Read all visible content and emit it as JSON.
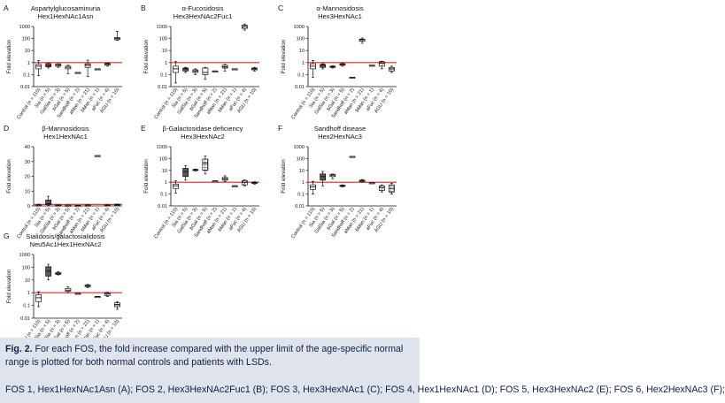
{
  "figure": {
    "caption_label": "Fig. 2.",
    "caption_text": " For each FOS, the fold increase compared with the upper limit of the age-specific normal range is plotted for both normal controls and patients with LSDs.",
    "caption_sub": "FOS 1, Hex1HexNAc1Asn (A); FOS 2, Hex3HexNAc2Fuc1 (B); FOS 3, Hex3HexNAc1 (C); FOS 4, Hex1HexNAc1 (D); FOS 5, Hex3HexNAc2 (E); FOS 6, Hex2HexNAc3 (F);",
    "reference_color": "#e02020"
  },
  "chart_data": [
    {
      "type": "box",
      "letter": "A",
      "title_lines": [
        "Aspartylglucosaminuria",
        "Hex1HexNAc1Asn"
      ],
      "ylabel": "Fold elevation",
      "yscale": "log",
      "ylim": [
        0.01,
        1000
      ],
      "yticks": [
        "0.01",
        "0.1",
        "1",
        "10",
        "100",
        "1000"
      ],
      "reference_line": 1,
      "categories": [
        "Control (n = 110)",
        "Sia (n = 5)",
        "GalSia (n = 3)",
        "bGal (n = 5)",
        "Sandhoff (n = 2)",
        "aMan (n = 21)",
        "bMan (n = 1)",
        "aFuc (n = 4)",
        "AGU (n = 10)"
      ],
      "series": [
        {
          "group": "Control (n = 110)",
          "min": 0.08,
          "q1": 0.3,
          "median": 0.5,
          "q3": 0.7,
          "max": 1.5,
          "fill": "plain"
        },
        {
          "group": "Sia (n = 5)",
          "min": 0.35,
          "q1": 0.45,
          "median": 0.55,
          "q3": 0.8,
          "max": 0.85,
          "fill": "dark"
        },
        {
          "group": "GalSia (n = 3)",
          "min": 0.4,
          "q1": 0.5,
          "median": 0.6,
          "q3": 0.75,
          "max": 0.8,
          "fill": "hatch"
        },
        {
          "group": "bGal (n = 5)",
          "min": 0.12,
          "q1": 0.3,
          "median": 0.4,
          "q3": 0.5,
          "max": 0.6,
          "fill": "plain"
        },
        {
          "group": "Sandhoff (n = 2)",
          "min": 0.15,
          "q1": 0.15,
          "median": 0.15,
          "q3": 0.15,
          "max": 0.15,
          "fill": "plain"
        },
        {
          "group": "aMan (n = 21)",
          "min": 0.07,
          "q1": 0.4,
          "median": 0.6,
          "q3": 0.8,
          "max": 1.6,
          "fill": "dots"
        },
        {
          "group": "bMan (n = 1)",
          "min": 0.3,
          "q1": 0.3,
          "median": 0.3,
          "q3": 0.3,
          "max": 0.3,
          "fill": "plain"
        },
        {
          "group": "aFuc (n = 4)",
          "min": 0.5,
          "q1": 0.6,
          "median": 0.75,
          "q3": 0.85,
          "max": 0.9,
          "fill": "hatch"
        },
        {
          "group": "AGU (n = 10)",
          "min": 70,
          "q1": 80,
          "median": 100,
          "q3": 120,
          "max": 400,
          "fill": "grid"
        }
      ]
    },
    {
      "type": "box",
      "letter": "B",
      "title_lines": [
        "α-Fucosidosis",
        "Hex3HexNAc2Fuc1"
      ],
      "ylabel": "Fold elevation",
      "yscale": "log",
      "ylim": [
        0.01,
        1000
      ],
      "yticks": [
        "0.01",
        "0.1",
        "1",
        "10",
        "100",
        "1000"
      ],
      "reference_line": 1,
      "categories": [
        "Control (n = 110)",
        "Sia (n = 5)",
        "GalSia (n = 3)",
        "bGal (n = 5)",
        "Sandhoff (n = 2)",
        "aMan (n = 21)",
        "bMan (n = 1)",
        "aFuc (n = 4)",
        "AGU (n = 10)"
      ],
      "series": [
        {
          "group": "Control (n = 110)",
          "min": 0.02,
          "q1": 0.15,
          "median": 0.3,
          "q3": 0.5,
          "max": 1.2,
          "fill": "plain"
        },
        {
          "group": "Sia (n = 5)",
          "min": 0.15,
          "q1": 0.2,
          "median": 0.3,
          "q3": 0.35,
          "max": 0.4,
          "fill": "dark"
        },
        {
          "group": "GalSia (n = 3)",
          "min": 0.1,
          "q1": 0.15,
          "median": 0.2,
          "q3": 0.25,
          "max": 0.3,
          "fill": "hatch"
        },
        {
          "group": "bGal (n = 5)",
          "min": 0.04,
          "q1": 0.1,
          "median": 0.15,
          "q3": 0.35,
          "max": 0.4,
          "fill": "plain"
        },
        {
          "group": "Sandhoff (n = 2)",
          "min": 0.2,
          "q1": 0.2,
          "median": 0.2,
          "q3": 0.2,
          "max": 0.2,
          "fill": "plain"
        },
        {
          "group": "aMan (n = 21)",
          "min": 0.2,
          "q1": 0.35,
          "median": 0.45,
          "q3": 0.6,
          "max": 0.7,
          "fill": "dots"
        },
        {
          "group": "bMan (n = 1)",
          "min": 0.3,
          "q1": 0.3,
          "median": 0.3,
          "q3": 0.3,
          "max": 0.3,
          "fill": "plain"
        },
        {
          "group": "aFuc (n = 4)",
          "min": 500,
          "q1": 700,
          "median": 1000,
          "q3": 1300,
          "max": 1600,
          "fill": "hatch"
        },
        {
          "group": "AGU (n = 10)",
          "min": 0.2,
          "q1": 0.25,
          "median": 0.3,
          "q3": 0.35,
          "max": 0.4,
          "fill": "grid"
        }
      ]
    },
    {
      "type": "box",
      "letter": "C",
      "title_lines": [
        "α-Mannosidosis",
        "Hex3HexNAc1"
      ],
      "ylabel": "Fold elevation",
      "yscale": "log",
      "ylim": [
        0.01,
        1000
      ],
      "yticks": [
        "0.01",
        "0.1",
        "1",
        "10",
        "100",
        "1000"
      ],
      "reference_line": 1,
      "categories": [
        "Control (n = 110)",
        "Sia (n = 5)",
        "GalSia (n = 3)",
        "bGal (n = 5)",
        "Sandhoff (n = 2)",
        "aMan (n = 21)",
        "bMan (n = 1)",
        "aFuc (n = 4)",
        "AGU (n = 10)"
      ],
      "series": [
        {
          "group": "Control (n = 110)",
          "min": 0.06,
          "q1": 0.3,
          "median": 0.5,
          "q3": 0.8,
          "max": 1.5,
          "fill": "plain"
        },
        {
          "group": "Sia (n = 5)",
          "min": 0.3,
          "q1": 0.4,
          "median": 0.6,
          "q3": 0.7,
          "max": 0.8,
          "fill": "dark"
        },
        {
          "group": "GalSia (n = 3)",
          "min": 0.35,
          "q1": 0.4,
          "median": 0.45,
          "q3": 0.5,
          "max": 0.55,
          "fill": "hatch"
        },
        {
          "group": "bGal (n = 5)",
          "min": 0.5,
          "q1": 0.6,
          "median": 0.7,
          "q3": 0.8,
          "max": 0.85,
          "fill": "plain"
        },
        {
          "group": "Sandhoff (n = 2)",
          "min": 0.06,
          "q1": 0.06,
          "median": 0.06,
          "q3": 0.06,
          "max": 0.06,
          "fill": "plain"
        },
        {
          "group": "aMan (n = 21)",
          "min": 40,
          "q1": 60,
          "median": 80,
          "q3": 90,
          "max": 110,
          "fill": "dots"
        },
        {
          "group": "bMan (n = 1)",
          "min": 0.6,
          "q1": 0.6,
          "median": 0.6,
          "q3": 0.6,
          "max": 0.6,
          "fill": "plain"
        },
        {
          "group": "aFuc (n = 4)",
          "min": 0.3,
          "q1": 0.5,
          "median": 0.9,
          "q3": 1.2,
          "max": 1.3,
          "fill": "hatch"
        },
        {
          "group": "AGU (n = 10)",
          "min": 0.15,
          "q1": 0.2,
          "median": 0.3,
          "q3": 0.4,
          "max": 0.5,
          "fill": "grid"
        }
      ]
    },
    {
      "type": "box",
      "letter": "D",
      "title_lines": [
        "β-Mannosidosis",
        "Hex1HexNAc1"
      ],
      "ylabel": "Fold elevation",
      "yscale": "linear",
      "ylim": [
        0,
        40
      ],
      "yticks": [
        "0",
        "10",
        "20",
        "30",
        "40"
      ],
      "reference_line": 1,
      "categories": [
        "Control (n = 110)",
        "Sia (n = 5)",
        "GalSia (n = 3)",
        "bGal (n = 5)",
        "Sandhoff (n = 2)",
        "aMan (n = 21)",
        "bMan (n = 1)",
        "aFuc (n = 4)",
        "AGU (n = 10)"
      ],
      "series": [
        {
          "group": "Control (n = 110)",
          "min": 0.1,
          "q1": 0.3,
          "median": 0.5,
          "q3": 0.7,
          "max": 1.2,
          "fill": "plain"
        },
        {
          "group": "Sia (n = 5)",
          "min": 0.3,
          "q1": 0.8,
          "median": 1.5,
          "q3": 4,
          "max": 6.5,
          "fill": "dark"
        },
        {
          "group": "GalSia (n = 3)",
          "min": 0.3,
          "q1": 0.4,
          "median": 0.5,
          "q3": 0.6,
          "max": 0.7,
          "fill": "hatch"
        },
        {
          "group": "bGal (n = 5)",
          "min": 0.2,
          "q1": 0.3,
          "median": 0.4,
          "q3": 0.5,
          "max": 0.6,
          "fill": "plain"
        },
        {
          "group": "Sandhoff (n = 2)",
          "min": 0.3,
          "q1": 0.3,
          "median": 0.3,
          "q3": 0.3,
          "max": 0.3,
          "fill": "plain"
        },
        {
          "group": "aMan (n = 21)",
          "min": 0.2,
          "q1": 0.3,
          "median": 0.5,
          "q3": 0.6,
          "max": 0.8,
          "fill": "dots"
        },
        {
          "group": "bMan (n = 1)",
          "min": 34,
          "q1": 34,
          "median": 34,
          "q3": 34,
          "max": 34,
          "fill": "plain"
        },
        {
          "group": "aFuc (n = 4)",
          "min": 0.4,
          "q1": 0.5,
          "median": 0.6,
          "q3": 0.7,
          "max": 0.8,
          "fill": "hatch"
        },
        {
          "group": "AGU (n = 10)",
          "min": 0.5,
          "q1": 0.7,
          "median": 0.9,
          "q3": 1.1,
          "max": 1.3,
          "fill": "grid"
        }
      ]
    },
    {
      "type": "box",
      "letter": "E",
      "title_lines": [
        "β-Galactosidase deficiency",
        "Hex3HexNAc2"
      ],
      "ylabel": "Fold elevation",
      "yscale": "log",
      "ylim": [
        0.01,
        1000
      ],
      "yticks": [
        "0.01",
        "0.1",
        "1",
        "10",
        "100",
        "1000"
      ],
      "reference_line": 1,
      "categories": [
        "Control (n = 110)",
        "Sia (n = 5)",
        "GalSia (n = 3)",
        "bGal (n = 5)",
        "Sandhoff (n = 2)",
        "aMan (n = 21)",
        "bMan (n = 1)",
        "aFuc (n = 4)",
        "AGU (n = 10)"
      ],
      "series": [
        {
          "group": "Control (n = 110)",
          "min": 0.12,
          "q1": 0.3,
          "median": 0.5,
          "q3": 0.7,
          "max": 1.3,
          "fill": "plain"
        },
        {
          "group": "Sia (n = 5)",
          "min": 1.5,
          "q1": 3,
          "median": 8,
          "q3": 15,
          "max": 25,
          "fill": "dark"
        },
        {
          "group": "GalSia (n = 3)",
          "min": 9,
          "q1": 10,
          "median": 11,
          "q3": 12,
          "max": 13,
          "fill": "hatch"
        },
        {
          "group": "bGal (n = 5)",
          "min": 5,
          "q1": 10,
          "median": 40,
          "q3": 90,
          "max": 160,
          "fill": "grid"
        },
        {
          "group": "Sandhoff (n = 2)",
          "min": 1.3,
          "q1": 1.3,
          "median": 1.3,
          "q3": 1.3,
          "max": 1.3,
          "fill": "plain"
        },
        {
          "group": "aMan (n = 21)",
          "min": 1.2,
          "q1": 1.5,
          "median": 2,
          "q3": 2.5,
          "max": 3.5,
          "fill": "dots"
        },
        {
          "group": "bMan (n = 1)",
          "min": 0.5,
          "q1": 0.5,
          "median": 0.5,
          "q3": 0.5,
          "max": 0.5,
          "fill": "plain"
        },
        {
          "group": "aFuc (n = 4)",
          "min": 0.5,
          "q1": 0.6,
          "median": 1,
          "q3": 1.4,
          "max": 1.6,
          "fill": "hatch"
        },
        {
          "group": "AGU (n = 10)",
          "min": 0.7,
          "q1": 0.8,
          "median": 0.9,
          "q3": 1,
          "max": 1.1,
          "fill": "grid"
        }
      ]
    },
    {
      "type": "box",
      "letter": "F",
      "title_lines": [
        "Sandhoff disease",
        "Hex2HexNAc3"
      ],
      "ylabel": "Fold elevation",
      "yscale": "log",
      "ylim": [
        0.01,
        1000
      ],
      "yticks": [
        "0.01",
        "0.1",
        "1",
        "10",
        "100",
        "1000"
      ],
      "reference_line": 1,
      "categories": [
        "Control (n = 110)",
        "Sia (n = 5)",
        "GalSia (n = 3)",
        "bGal (n = 5)",
        "Sandhoff (n = 2)",
        "aMan (n = 21)",
        "bMan (n = 1)",
        "aFuc (n = 4)",
        "AGU (n = 10)"
      ],
      "series": [
        {
          "group": "Control (n = 110)",
          "min": 0.1,
          "q1": 0.25,
          "median": 0.4,
          "q3": 0.6,
          "max": 1.2,
          "fill": "plain"
        },
        {
          "group": "Sia (n = 5)",
          "min": 0.5,
          "q1": 1.5,
          "median": 3,
          "q3": 5,
          "max": 8,
          "fill": "dark"
        },
        {
          "group": "GalSia (n = 3)",
          "min": 2,
          "q1": 3,
          "median": 4,
          "q3": 4.5,
          "max": 5,
          "fill": "hatch"
        },
        {
          "group": "bGal (n = 5)",
          "min": 0.4,
          "q1": 0.45,
          "median": 0.5,
          "q3": 0.55,
          "max": 0.6,
          "fill": "plain"
        },
        {
          "group": "Sandhoff (n = 2)",
          "min": 150,
          "q1": 150,
          "median": 150,
          "q3": 150,
          "max": 150,
          "fill": "plain"
        },
        {
          "group": "aMan (n = 21)",
          "min": 1,
          "q1": 1.1,
          "median": 1.3,
          "q3": 1.5,
          "max": 1.7,
          "fill": "dots"
        },
        {
          "group": "bMan (n = 1)",
          "min": 0.9,
          "q1": 0.9,
          "median": 0.9,
          "q3": 0.9,
          "max": 0.9,
          "fill": "plain"
        },
        {
          "group": "aFuc (n = 4)",
          "min": 0.15,
          "q1": 0.2,
          "median": 0.35,
          "q3": 0.5,
          "max": 0.6,
          "fill": "hatch"
        },
        {
          "group": "AGU (n = 10)",
          "min": 0.1,
          "q1": 0.15,
          "median": 0.3,
          "q3": 0.6,
          "max": 0.8,
          "fill": "grid"
        }
      ]
    },
    {
      "type": "box",
      "letter": "G",
      "title_lines": [
        "Sialidosis/galactosialidosis",
        "Neu5Ac1Hex1HexNAc2"
      ],
      "ylabel": "Fold elevation",
      "yscale": "log",
      "ylim": [
        0.01,
        1000
      ],
      "yticks": [
        "0.01",
        "0.1",
        "1",
        "10",
        "100",
        "1000"
      ],
      "reference_line": 1,
      "categories": [
        "Control (n = 110)",
        "Sia (n = 5)",
        "GalSia (n = 3)",
        "bGal (n = 5)",
        "Sandhoff (n = 2)",
        "aMan (n = 21)",
        "bMan (n = 1)",
        "aFuc (n = 4)",
        "AGU (n = 10)"
      ],
      "series": [
        {
          "group": "Control (n = 110)",
          "min": 0.08,
          "q1": 0.2,
          "median": 0.4,
          "q3": 0.7,
          "max": 1.2,
          "fill": "plain"
        },
        {
          "group": "Sia (n = 5)",
          "min": 10,
          "q1": 20,
          "median": 50,
          "q3": 110,
          "max": 170,
          "fill": "dark"
        },
        {
          "group": "GalSia (n = 3)",
          "min": 25,
          "q1": 28,
          "median": 32,
          "q3": 38,
          "max": 45,
          "fill": "hatch"
        },
        {
          "group": "bGal (n = 5)",
          "min": 1,
          "q1": 1.3,
          "median": 1.6,
          "q3": 2.2,
          "max": 3,
          "fill": "plain"
        },
        {
          "group": "Sandhoff (n = 2)",
          "min": 0.9,
          "q1": 0.9,
          "median": 0.9,
          "q3": 0.9,
          "max": 0.9,
          "fill": "plain"
        },
        {
          "group": "aMan (n = 21)",
          "min": 2.5,
          "q1": 3,
          "median": 3.5,
          "q3": 4,
          "max": 4.5,
          "fill": "dots"
        },
        {
          "group": "bMan (n = 1)",
          "min": 0.5,
          "q1": 0.5,
          "median": 0.5,
          "q3": 0.5,
          "max": 0.5,
          "fill": "plain"
        },
        {
          "group": "aFuc (n = 4)",
          "min": 0.5,
          "q1": 0.6,
          "median": 0.8,
          "q3": 1,
          "max": 1.1,
          "fill": "hatch"
        },
        {
          "group": "AGU (n = 10)",
          "min": 0.05,
          "q1": 0.08,
          "median": 0.12,
          "q3": 0.16,
          "max": 0.2,
          "fill": "grid"
        }
      ]
    }
  ]
}
